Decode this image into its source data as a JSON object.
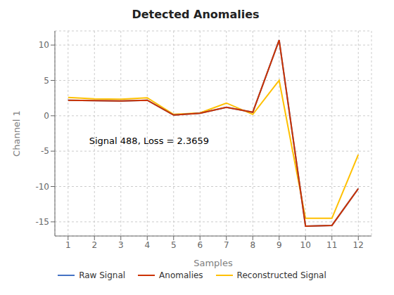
{
  "chart_data": {
    "type": "line",
    "title": "Detected Anomalies",
    "xlabel": "Samples",
    "ylabel": "Channel 1",
    "x": [
      1,
      2,
      3,
      4,
      5,
      6,
      7,
      8,
      9,
      10,
      11,
      12
    ],
    "series": [
      {
        "name": "Raw Signal",
        "color": "#4472c4",
        "values": [
          2.2,
          2.15,
          2.1,
          2.2,
          0.1,
          0.35,
          1.2,
          0.5,
          10.7,
          -15.6,
          -15.5,
          -10.3
        ]
      },
      {
        "name": "Anomalies",
        "color": "#cc3300",
        "values": [
          2.2,
          2.15,
          2.1,
          2.2,
          0.1,
          0.35,
          1.2,
          0.5,
          10.7,
          -15.6,
          -15.5,
          -10.3
        ]
      },
      {
        "name": "Reconstructed Signal",
        "color": "#ffc000",
        "values": [
          2.6,
          2.4,
          2.35,
          2.55,
          0.2,
          0.4,
          1.8,
          0.2,
          5.0,
          -14.5,
          -14.5,
          -5.5
        ]
      }
    ],
    "annotations": [
      {
        "text": "Signal 488, Loss = 2.3659",
        "x": 1.8,
        "y": -3.5
      }
    ],
    "xlim": [
      0.5,
      12.5
    ],
    "xticks": [
      1,
      2,
      3,
      4,
      5,
      6,
      7,
      8,
      9,
      10,
      11,
      12
    ],
    "ylim": [
      -17,
      12
    ],
    "yticks": [
      -15,
      -10,
      -5,
      0,
      5,
      10
    ],
    "grid": true,
    "legend": "bottom"
  }
}
